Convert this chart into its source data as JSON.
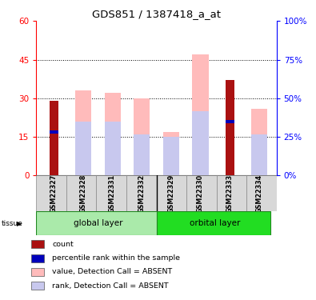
{
  "title": "GDS851 / 1387418_a_at",
  "samples": [
    "GSM22327",
    "GSM22328",
    "GSM22331",
    "GSM22332",
    "GSM22329",
    "GSM22330",
    "GSM22333",
    "GSM22334"
  ],
  "value_absent": [
    0,
    33,
    32,
    30,
    17,
    47,
    0,
    26
  ],
  "rank_absent": [
    0,
    21,
    21,
    16,
    15,
    25,
    0,
    16
  ],
  "count": [
    29,
    0,
    0,
    0,
    0,
    0,
    37,
    0
  ],
  "percentile_rank": [
    17,
    0,
    0,
    0,
    0,
    0,
    21,
    0
  ],
  "ylim_left": [
    0,
    60
  ],
  "ylim_right": [
    0,
    100
  ],
  "yticks_left": [
    0,
    15,
    30,
    45,
    60
  ],
  "yticks_right": [
    0,
    25,
    50,
    75,
    100
  ],
  "color_count": "#aa1111",
  "color_percentile": "#0000bb",
  "color_value_absent": "#ffbbbb",
  "color_rank_absent": "#c8c8ee",
  "bar_width": 0.55,
  "legend_items": [
    "count",
    "percentile rank within the sample",
    "value, Detection Call = ABSENT",
    "rank, Detection Call = ABSENT"
  ]
}
